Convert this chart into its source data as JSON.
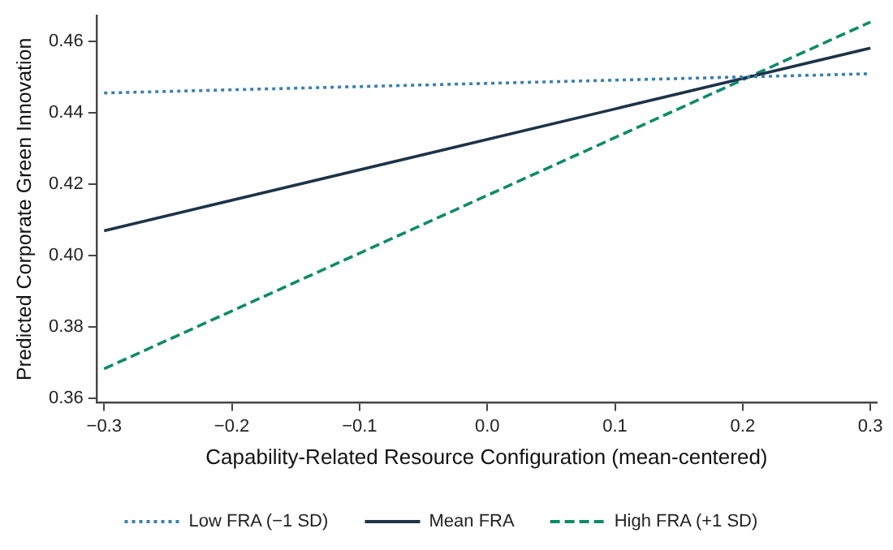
{
  "chart_data": {
    "type": "line",
    "xlabel": "Capability-Related Resource Configuration (mean-centered)",
    "ylabel": "Predicted Corporate Green Innovation",
    "x": [
      -0.3,
      0.3
    ],
    "series": [
      {
        "name": "Low FRA (−1 SD)",
        "color": "#3a7fb0",
        "values": [
          0.4455,
          0.4509
        ],
        "line_style": "dotted"
      },
      {
        "name": "Mean FRA",
        "color": "#1d3348",
        "values": [
          0.4069,
          0.4581
        ],
        "line_style": "solid"
      },
      {
        "name": "High FRA (+1 SD)",
        "color": "#0f8a6a",
        "values": [
          0.3682,
          0.4654
        ],
        "line_style": "dashed"
      }
    ],
    "xlim": [
      -0.306,
      0.305
    ],
    "xticks": [
      {
        "value": -0.3,
        "label": "−0.3"
      },
      {
        "value": -0.2,
        "label": "−0.2"
      },
      {
        "value": -0.1,
        "label": "−0.1"
      },
      {
        "value": 0,
        "label": "0.0"
      },
      {
        "value": 0.1,
        "label": "0.1"
      },
      {
        "value": 0.2,
        "label": "0.2"
      },
      {
        "value": 0.3,
        "label": "0.3"
      }
    ],
    "ylim": [
      0.3587,
      0.4672
    ],
    "yticks": [
      {
        "value": 0.36,
        "label": "0.36"
      },
      {
        "value": 0.38,
        "label": "0.38"
      },
      {
        "value": 0.4,
        "label": "0.40"
      },
      {
        "value": 0.42,
        "label": "0.42"
      },
      {
        "value": 0.44,
        "label": "0.44"
      },
      {
        "value": 0.46,
        "label": "0.46"
      }
    ],
    "grid": false,
    "legend": "bottom",
    "marker": "none"
  }
}
